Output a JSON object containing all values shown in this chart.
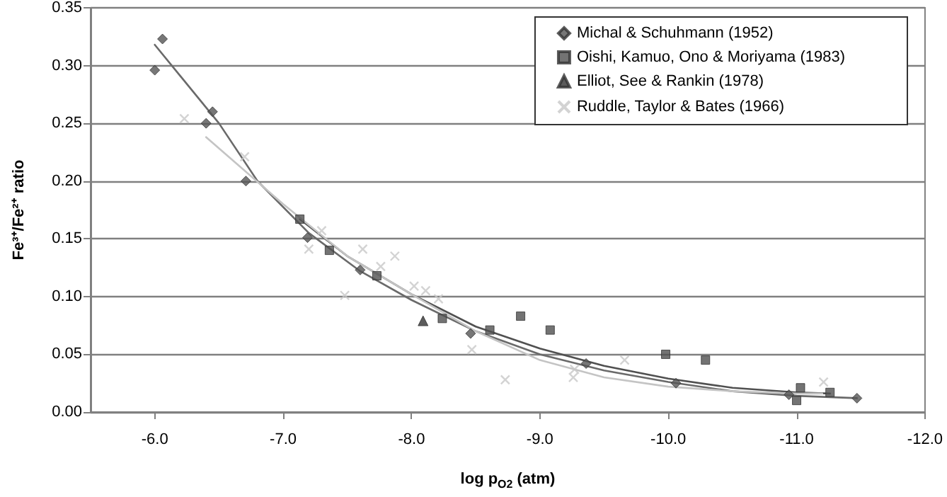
{
  "chart_data": {
    "type": "scatter",
    "xlabel": "log p$_{O2}$ (atm)",
    "ylabel": "Fe³⁺/Fe²⁺ ratio",
    "xlim": [
      -5.5,
      -12
    ],
    "xticks": [
      {
        "value": -6,
        "label": "-6.0"
      },
      {
        "value": -7,
        "label": "-7.0"
      },
      {
        "value": -8,
        "label": "-8.0"
      },
      {
        "value": -9,
        "label": "-9.0"
      },
      {
        "value": -10,
        "label": "-10.0"
      },
      {
        "value": -11,
        "label": "-11.0"
      },
      {
        "value": -12,
        "label": "-12.0"
      }
    ],
    "ylim": [
      0,
      0.35
    ],
    "yticks": [
      {
        "value": 0,
        "label": "0.00"
      },
      {
        "value": 0.05,
        "label": "0.05"
      },
      {
        "value": 0.1,
        "label": "0.10"
      },
      {
        "value": 0.15,
        "label": "0.15"
      },
      {
        "value": 0.2,
        "label": "0.20"
      },
      {
        "value": 0.25,
        "label": "0.25"
      },
      {
        "value": 0.3,
        "label": "0.30"
      },
      {
        "value": 0.35,
        "label": "0.35"
      }
    ],
    "grid": "y",
    "legend": "top right",
    "series": [
      {
        "type": "line",
        "marker": "none",
        "color": "#6a6a6a",
        "x": [
          -6.0,
          -6.5,
          -6.8,
          -7.2,
          -7.6,
          -8.0,
          -8.5,
          -9.0,
          -9.5,
          -10.0,
          -10.5,
          -11.0,
          -11.47
        ],
        "values": [
          0.318,
          0.25,
          0.2,
          0.155,
          0.122,
          0.097,
          0.07,
          0.05,
          0.036,
          0.026,
          0.018,
          0.014,
          0.012
        ]
      },
      {
        "type": "line",
        "marker": "none",
        "color": "#505050",
        "x": [
          -7.13,
          -7.5,
          -8.0,
          -8.5,
          -9.0,
          -9.5,
          -10.0,
          -10.5,
          -11.0,
          -11.26
        ],
        "values": [
          0.167,
          0.135,
          0.102,
          0.074,
          0.055,
          0.04,
          0.029,
          0.021,
          0.017,
          0.016
        ]
      },
      {
        "type": "line",
        "marker": "none",
        "color": "#c4c4c4",
        "x": [
          -6.4,
          -7.0,
          -7.5,
          -8.0,
          -8.5,
          -9.0,
          -9.5,
          -10.0,
          -10.5,
          -11.0,
          -11.2
        ],
        "values": [
          0.238,
          0.18,
          0.135,
          0.102,
          0.07,
          0.045,
          0.03,
          0.022,
          0.018,
          0.016,
          0.016
        ]
      },
      {
        "name": "Michal & Schuhmann (1952)",
        "marker": "diamond",
        "color": "#555555",
        "x": [
          -6.0,
          -6.06,
          -6.4,
          -6.45,
          -6.71,
          -7.19,
          -7.6,
          -8.46,
          -9.36,
          -10.06,
          -10.94,
          -11.47
        ],
        "values": [
          0.296,
          0.323,
          0.25,
          0.26,
          0.2,
          0.151,
          0.123,
          0.068,
          0.042,
          0.025,
          0.015,
          0.012
        ]
      },
      {
        "name": "Oishi, Kamuo, Ono & Moriyama (1983)",
        "marker": "square",
        "color": "#505050",
        "x": [
          -7.13,
          -7.36,
          -7.73,
          -8.24,
          -8.61,
          -8.85,
          -9.08,
          -9.98,
          -10.29,
          -11.03,
          -11.0,
          -11.26
        ],
        "values": [
          0.167,
          0.14,
          0.118,
          0.081,
          0.071,
          0.083,
          0.071,
          0.05,
          0.045,
          0.021,
          0.01,
          0.017
        ]
      },
      {
        "name": "Elliot, See & Rankin (1978)",
        "marker": "triangle",
        "color": "#333333",
        "x": [
          -8.09
        ],
        "values": [
          0.079
        ]
      },
      {
        "name": "Ruddle, Taylor & Bates (1966)",
        "marker": "cross",
        "color": "#c8c8c8",
        "x": [
          -6.23,
          -6.7,
          -7.2,
          -7.3,
          -7.48,
          -7.62,
          -7.76,
          -7.87,
          -8.02,
          -8.11,
          -8.21,
          -8.47,
          -8.73,
          -9.26,
          -9.27,
          -9.66,
          -11.21
        ],
        "values": [
          0.254,
          0.221,
          0.141,
          0.157,
          0.101,
          0.141,
          0.126,
          0.135,
          0.109,
          0.105,
          0.098,
          0.054,
          0.028,
          0.03,
          0.037,
          0.045,
          0.026
        ]
      }
    ]
  }
}
